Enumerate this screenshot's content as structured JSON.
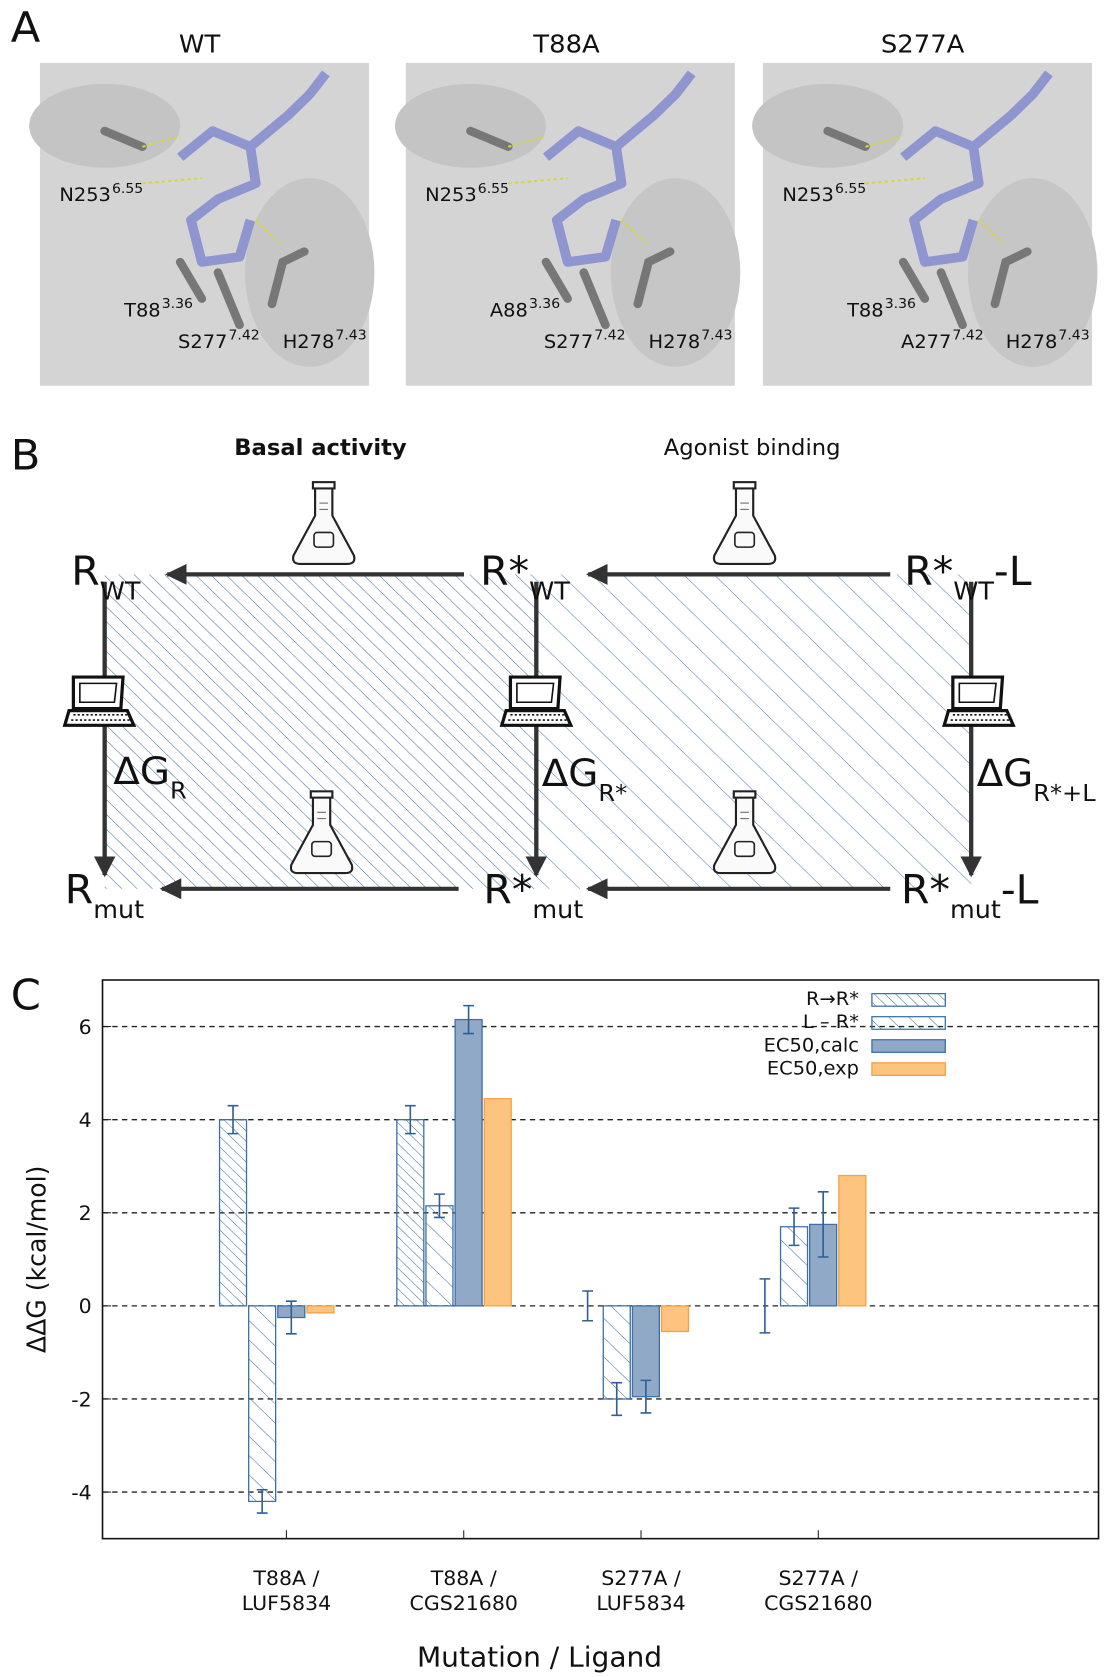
{
  "panel_a": {
    "label": "A",
    "mutation_color": "#e02020",
    "structures": [
      {
        "title": "WT",
        "residues": [
          {
            "name": "N253",
            "sup": "6.55"
          },
          {
            "name": "T88",
            "sup": "3.36"
          },
          {
            "name": "S277",
            "sup": "7.42"
          },
          {
            "name": "H278",
            "sup": "7.43"
          }
        ]
      },
      {
        "title": "T88A",
        "residues": [
          {
            "name": "N253",
            "sup": "6.55"
          },
          {
            "name": "A88",
            "sup": "3.36",
            "mutated": true
          },
          {
            "name": "S277",
            "sup": "7.42"
          },
          {
            "name": "H278",
            "sup": "7.43"
          }
        ]
      },
      {
        "title": "S277A",
        "residues": [
          {
            "name": "N253",
            "sup": "6.55"
          },
          {
            "name": "T88",
            "sup": "3.36"
          },
          {
            "name": "A277",
            "sup": "7.42",
            "mutated": true
          },
          {
            "name": "H278",
            "sup": "7.43"
          }
        ]
      }
    ]
  },
  "panel_b": {
    "label": "B",
    "basal_activity": "Basal activity",
    "agonist_binding": "Agonist binding",
    "nodes": [
      {
        "main": "R",
        "sub": "WT"
      },
      {
        "main": "R*",
        "sub": "WT"
      },
      {
        "main": "R*",
        "sub": "WT",
        "suffix": "-L"
      },
      {
        "main": "R",
        "sub": "mut"
      },
      {
        "main": "R*",
        "sub": "mut"
      },
      {
        "main": "R*",
        "sub": "mut",
        "suffix": "-L"
      }
    ],
    "free_energies": [
      {
        "main": "ΔG",
        "sub": "R"
      },
      {
        "main": "ΔG",
        "sub": "R*"
      },
      {
        "main": "ΔG",
        "sub": "R*+L"
      }
    ]
  },
  "chart_data": {
    "type": "bar",
    "label": "C",
    "x_label": "Mutation / Ligand",
    "y_label": "ΔΔG (kcal/mol)",
    "categories": [
      [
        "T88A /",
        "LUF5834"
      ],
      [
        "T88A /",
        "CGS21680"
      ],
      [
        "S277A /",
        "LUF5834"
      ],
      [
        "S277A /",
        "CGS21680"
      ]
    ],
    "series": [
      {
        "name": "R→R*",
        "color": "#3d6fa8",
        "fill": "hatch-dense",
        "values": [
          4.0,
          4.0,
          0.0,
          0.0
        ],
        "errors": [
          0.3,
          0.3,
          0.32,
          0.58
        ]
      },
      {
        "name": "L – R*",
        "color": "#3d6fa8",
        "fill": "hatch-sparse",
        "values": [
          -4.2,
          2.15,
          -2.0,
          1.7
        ],
        "errors": [
          0.25,
          0.25,
          0.35,
          0.4
        ]
      },
      {
        "name": "EC50,calc",
        "color": "#3d6fa8",
        "fill": "#8fa9c7",
        "values": [
          -0.25,
          6.15,
          -1.95,
          1.75
        ],
        "errors": [
          0.35,
          0.3,
          0.35,
          0.7
        ]
      },
      {
        "name": "EC50,exp",
        "color": "#f5a142",
        "fill": "#fcc47f",
        "values": [
          -0.15,
          4.45,
          -0.55,
          2.8
        ]
      }
    ],
    "ylim": [
      -5,
      7
    ],
    "yticks": [
      -4,
      -2,
      0,
      2,
      4,
      6
    ],
    "grid": true,
    "legend": "top-right"
  }
}
